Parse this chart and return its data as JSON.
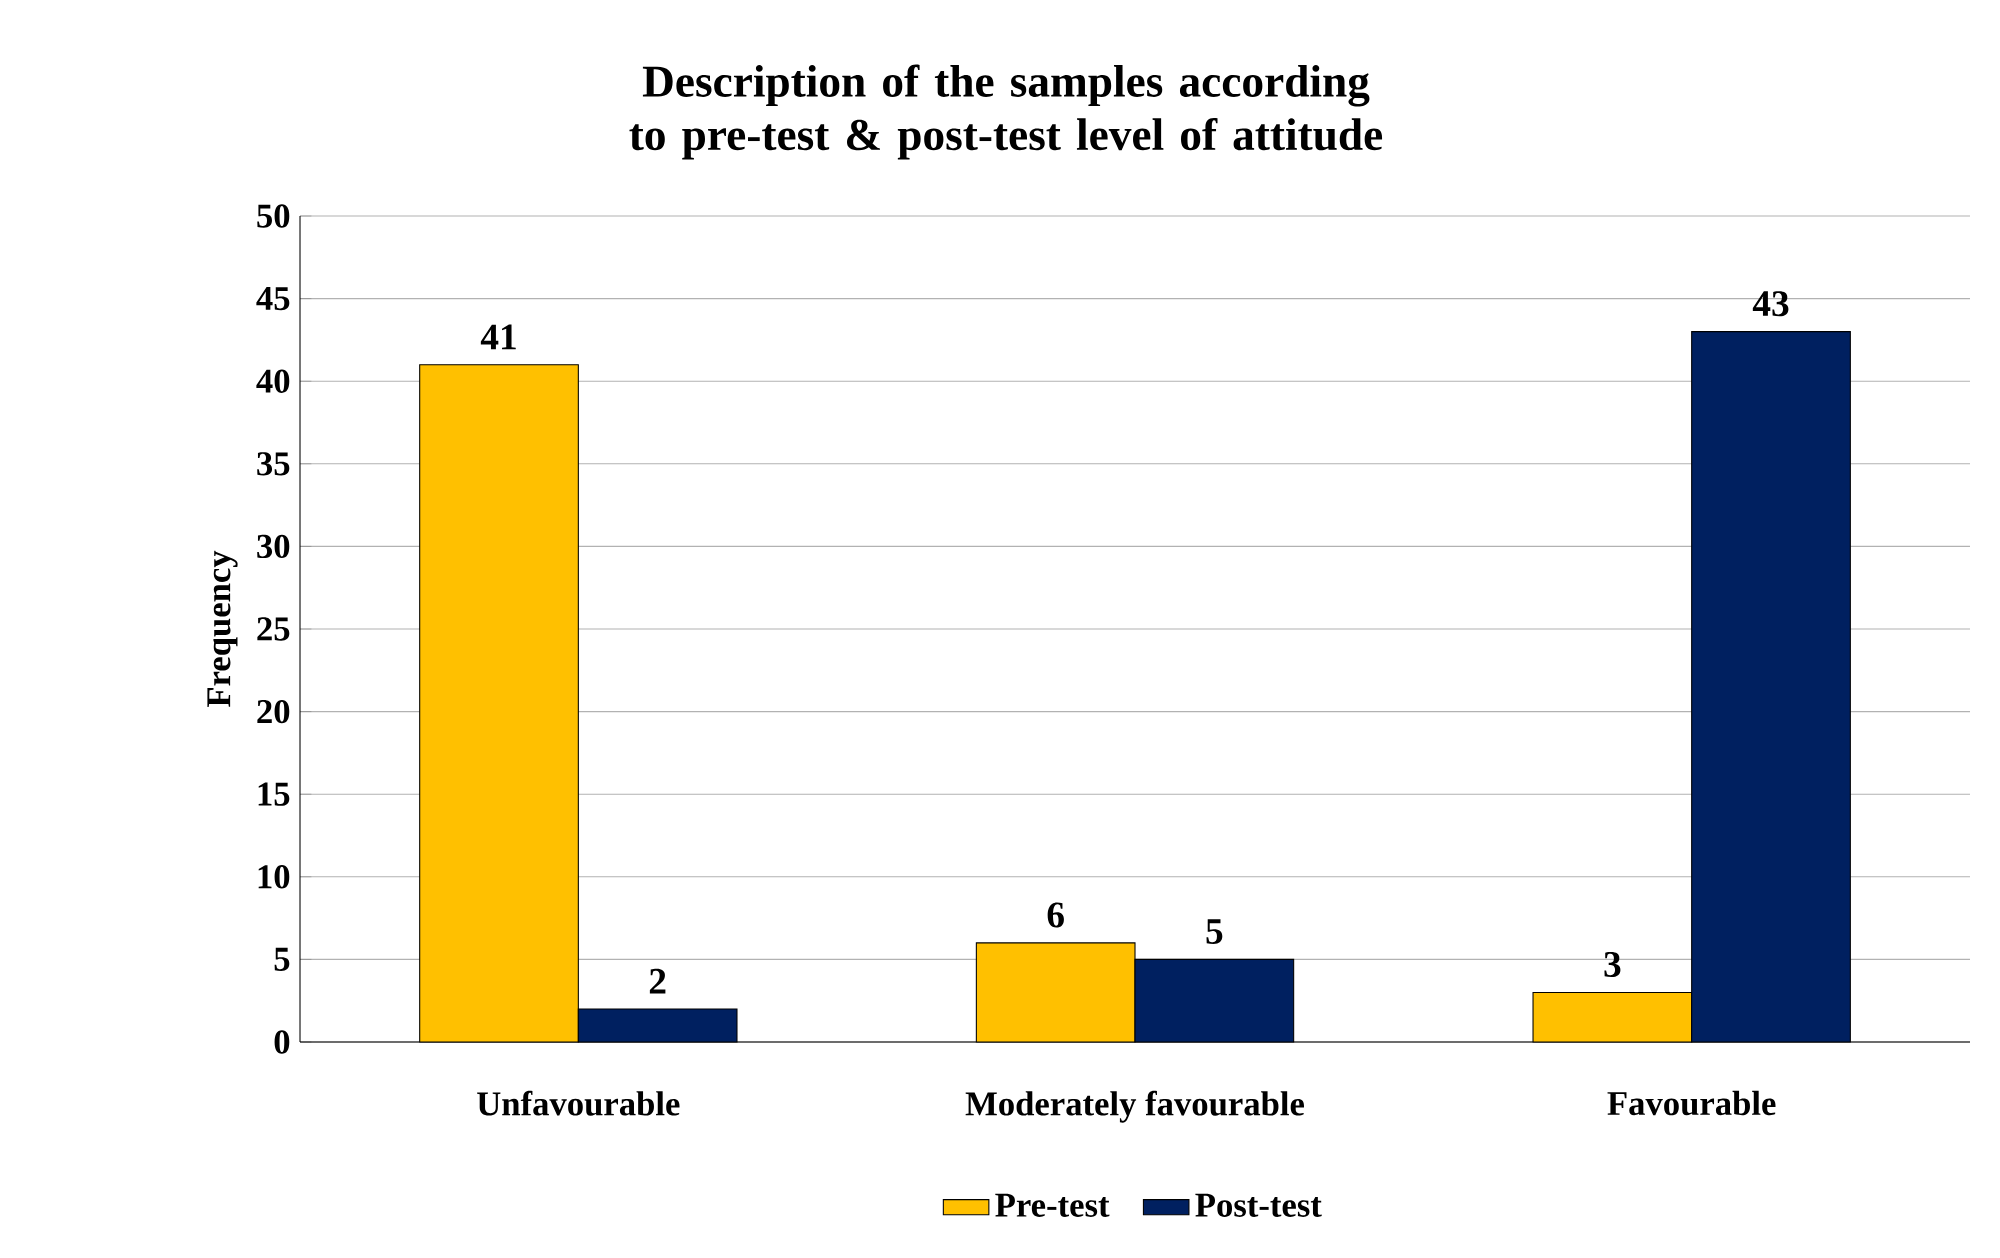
{
  "chart_data": {
    "type": "bar",
    "title": "Description of the samples according to pre-test & post-test level of attitude",
    "ylabel": "Frequency",
    "categories": [
      "Unfavourable",
      "Moderately favourable",
      "Favourable"
    ],
    "series": [
      {
        "name": "Pre-test",
        "color": "#ffc000",
        "values": [
          41,
          6,
          3
        ]
      },
      {
        "name": "Post-test",
        "color": "#002060",
        "values": [
          2,
          5,
          43
        ]
      }
    ],
    "ylim": [
      0,
      50
    ],
    "yticks": [
      0,
      5,
      10,
      15,
      20,
      25,
      30,
      35,
      40,
      45,
      50
    ],
    "grid": "y",
    "legend": "bottom",
    "data_labels": true
  }
}
